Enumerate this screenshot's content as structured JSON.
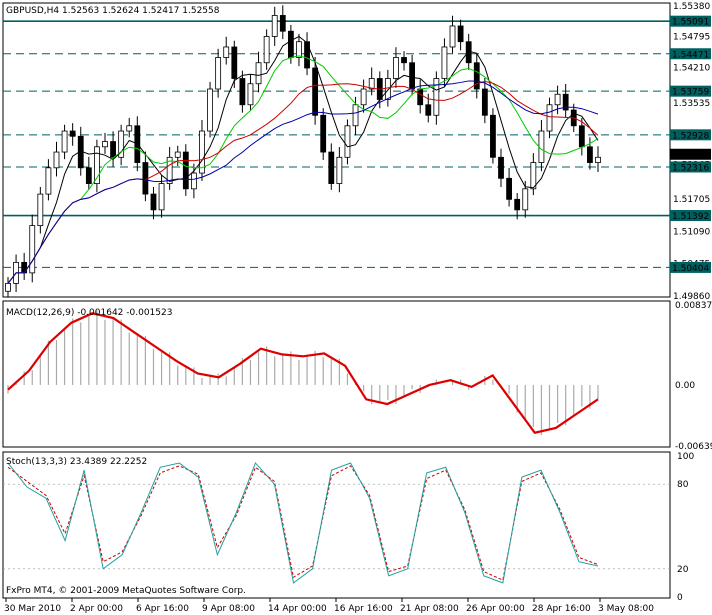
{
  "symbol_header": "GBPUSD,H4  1.52563 1.52624 1.52417 1.52558",
  "price_axis_labels": [
    "1.55380",
    "1.54795",
    "1.54210",
    "1.53535",
    "1.52950",
    "1.52365",
    "1.51705",
    "1.51090",
    "1.50475",
    "1.49860"
  ],
  "level_labels": [
    "1.55091",
    "1.54471",
    "1.53759",
    "1.52928",
    "1.52316",
    "1.51392",
    "1.50404"
  ],
  "current_price_label": "1.52558",
  "macd": {
    "header": "MACD(12,26,9) -0.001642 -0.001523",
    "axis_labels": [
      "0.00837",
      "0.00",
      "-0.00639"
    ]
  },
  "stoch": {
    "header": "Stoch(13,3,3) 23.4389 22.2252",
    "axis_labels": [
      "100",
      "80",
      "20",
      "0"
    ]
  },
  "copyright": "FxPro MT4, © 2001-2009 MetaQuotes Software Corp.",
  "time_labels": [
    "30 Mar 2010",
    "2 Apr 00:00",
    "6 Apr 16:00",
    "9 Apr 08:00",
    "14 Apr 00:00",
    "16 Apr 16:00",
    "21 Apr 08:00",
    "26 Apr 00:00",
    "28 Apr 16:00",
    "3 May 08:00"
  ],
  "colors": {
    "bull_candle": "#000000",
    "ma_black": "#000000",
    "ma_green": "#00cc00",
    "ma_red": "#cc0000",
    "ma_blue": "#0000aa",
    "level_line": "#006060",
    "macd_signal": "#dd0000",
    "macd_hist": "#aaaaaa",
    "stoch_main": "#20a0a0",
    "stoch_signal": "#cc0000",
    "label_bg": "#006060"
  },
  "chart_data": {
    "type": "line",
    "price_closes": [
      1.501,
      1.505,
      1.503,
      1.512,
      1.518,
      1.523,
      1.526,
      1.53,
      1.529,
      1.523,
      1.52,
      1.527,
      1.528,
      1.525,
      1.53,
      1.531,
      1.524,
      1.518,
      1.515,
      1.52,
      1.525,
      1.526,
      1.519,
      1.522,
      1.53,
      1.538,
      1.544,
      1.546,
      1.54,
      1.535,
      1.539,
      1.543,
      1.548,
      1.552,
      1.549,
      1.544,
      1.547,
      1.542,
      1.533,
      1.526,
      1.52,
      1.525,
      1.531,
      1.535,
      1.538,
      1.54,
      1.536,
      1.54,
      1.544,
      1.543,
      1.538,
      1.535,
      1.533,
      1.54,
      1.546,
      1.55,
      1.547,
      1.543,
      1.538,
      1.533,
      1.525,
      1.521,
      1.517,
      1.515,
      1.519,
      1.524,
      1.53,
      1.535,
      1.537,
      1.534,
      1.531,
      1.527,
      1.524,
      1.525
    ],
    "macd_signal": [
      -0.0005,
      0.0015,
      0.0045,
      0.0065,
      0.0075,
      0.007,
      0.0055,
      0.004,
      0.0025,
      0.0012,
      0.0008,
      0.0022,
      0.0038,
      0.0032,
      0.003,
      0.0033,
      0.002,
      -0.0015,
      -0.002,
      -0.001,
      0.0,
      0.0005,
      -0.0002,
      0.001,
      -0.002,
      -0.005,
      -0.0045,
      -0.003,
      -0.0015
    ],
    "stoch_main": [
      95,
      78,
      70,
      40,
      90,
      20,
      30,
      60,
      92,
      95,
      85,
      30,
      60,
      95,
      80,
      10,
      20,
      90,
      95,
      70,
      15,
      20,
      88,
      92,
      60,
      15,
      10,
      85,
      90,
      60,
      25,
      22
    ],
    "stoch_signal": [
      92,
      82,
      72,
      45,
      86,
      25,
      32,
      58,
      88,
      93,
      87,
      35,
      58,
      92,
      82,
      14,
      22,
      86,
      93,
      72,
      18,
      22,
      84,
      90,
      62,
      18,
      12,
      82,
      88,
      62,
      28,
      23
    ]
  }
}
